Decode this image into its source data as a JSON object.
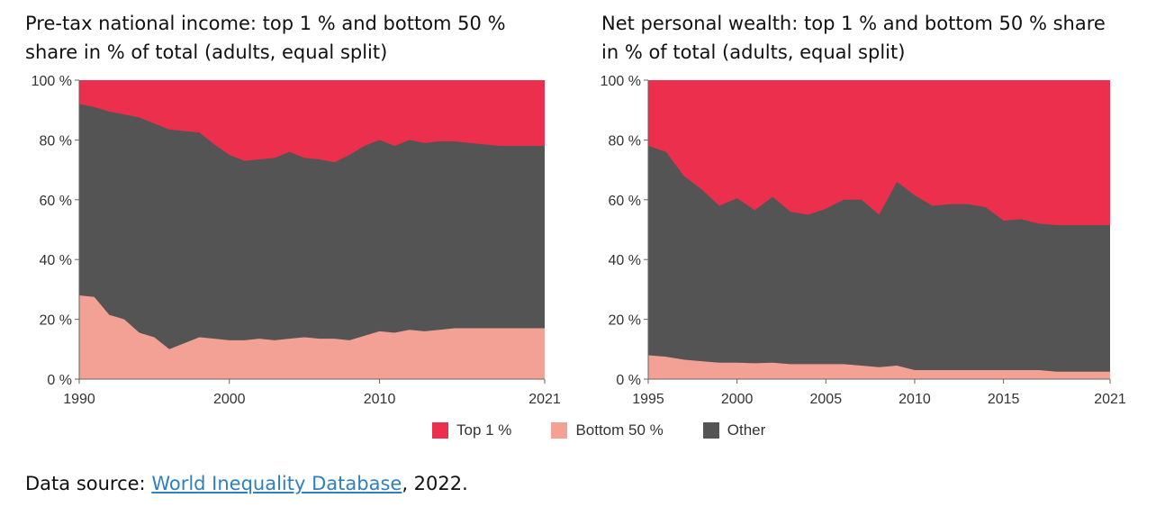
{
  "colors": {
    "top1": "#ec2f4d",
    "bottom50": "#f4a195",
    "other": "#545454",
    "background": "#ffffff"
  },
  "legend": {
    "top1": "Top 1 %",
    "bottom50": "Bottom 50 %",
    "other": "Other"
  },
  "source": {
    "prefix": "Data source: ",
    "link_text": "World Inequality Database",
    "suffix": ", 2022."
  },
  "chart_data": [
    {
      "type": "area",
      "stacked": true,
      "title": "Pre-tax national income: top 1 % and bottom 50 % share in % of total (adults, equal split)",
      "xlim": [
        1990,
        2021
      ],
      "ylim": [
        0,
        100
      ],
      "x_ticks": [
        "1990",
        "2000",
        "2010",
        "2021"
      ],
      "x_tick_values": [
        1990,
        2000,
        2010,
        2021
      ],
      "y_ticks": [
        "0 %",
        "20 %",
        "40 %",
        "60 %",
        "80 %",
        "100 %"
      ],
      "y_tick_values": [
        0,
        20,
        40,
        60,
        80,
        100
      ],
      "x": [
        1990,
        1991,
        1992,
        1993,
        1994,
        1995,
        1996,
        1997,
        1998,
        1999,
        2000,
        2001,
        2002,
        2003,
        2004,
        2005,
        2006,
        2007,
        2008,
        2009,
        2010,
        2011,
        2012,
        2013,
        2014,
        2015,
        2016,
        2017,
        2018,
        2019,
        2020,
        2021
      ],
      "series": [
        {
          "name": "Bottom 50 %",
          "values": [
            28,
            27.5,
            21.5,
            20,
            15.5,
            14,
            10,
            12,
            14,
            13.5,
            13,
            13,
            13.5,
            13,
            13.5,
            14,
            13.5,
            13.5,
            13,
            14.5,
            16,
            15.5,
            16.5,
            16,
            16.5,
            17,
            17,
            17,
            17,
            17,
            17,
            17
          ]
        },
        {
          "name": "Top 1 %",
          "values": [
            8,
            9,
            10.5,
            11.5,
            12.5,
            14.5,
            16.5,
            17,
            17.5,
            21.5,
            25,
            27,
            26.5,
            26,
            24,
            26,
            26.5,
            27.5,
            25,
            22,
            20,
            22,
            20,
            21,
            20.5,
            20.5,
            21,
            21.5,
            22,
            22,
            22,
            22
          ]
        }
      ]
    },
    {
      "type": "area",
      "stacked": true,
      "title": "Net personal wealth: top 1 % and bottom 50 % share in % of total (adults, equal split)",
      "xlim": [
        1995,
        2021
      ],
      "ylim": [
        0,
        100
      ],
      "x_ticks": [
        "1995",
        "2000",
        "2005",
        "2010",
        "2015",
        "2021"
      ],
      "x_tick_values": [
        1995,
        2000,
        2005,
        2010,
        2015,
        2021
      ],
      "y_ticks": [
        "0 %",
        "20 %",
        "40 %",
        "60 %",
        "80 %",
        "100 %"
      ],
      "y_tick_values": [
        0,
        20,
        40,
        60,
        80,
        100
      ],
      "x": [
        1995,
        1996,
        1997,
        1998,
        1999,
        2000,
        2001,
        2002,
        2003,
        2004,
        2005,
        2006,
        2007,
        2008,
        2009,
        2010,
        2011,
        2012,
        2013,
        2014,
        2015,
        2016,
        2017,
        2018,
        2019,
        2020,
        2021
      ],
      "series": [
        {
          "name": "Bottom 50 %",
          "values": [
            8,
            7.5,
            6.5,
            6,
            5.5,
            5.5,
            5.3,
            5.5,
            5,
            5,
            5,
            5,
            4.5,
            4,
            4.5,
            3,
            3,
            3,
            3,
            3,
            3,
            3,
            3,
            2.5,
            2.5,
            2.5,
            2.5
          ]
        },
        {
          "name": "Top 1 %",
          "values": [
            22,
            24,
            32,
            36.5,
            42,
            39.5,
            43.5,
            39,
            44,
            45,
            43,
            40,
            40,
            45,
            34,
            38.5,
            42,
            41.5,
            41.5,
            42.5,
            47,
            46.5,
            48,
            48.5,
            48.5,
            48.5,
            48.5
          ]
        }
      ]
    }
  ]
}
